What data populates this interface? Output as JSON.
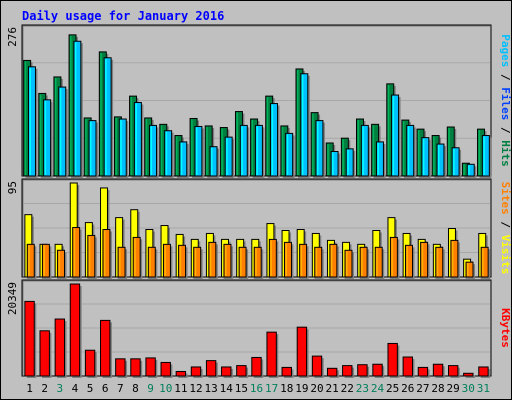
{
  "chart_data": [
    {
      "type": "bar",
      "panel": "top",
      "title": "Daily usage for January 2016",
      "y_max_label": "276",
      "ylim": [
        0,
        276
      ],
      "categories": [
        "1",
        "2",
        "3",
        "4",
        "5",
        "6",
        "7",
        "8",
        "9",
        "10",
        "11",
        "12",
        "13",
        "14",
        "15",
        "16",
        "17",
        "18",
        "19",
        "20",
        "21",
        "22",
        "23",
        "24",
        "25",
        "26",
        "27",
        "28",
        "29",
        "30",
        "31"
      ],
      "series": [
        {
          "name": "Hits",
          "color": "#008040",
          "values": [
            217,
            155,
            186,
            265,
            109,
            233,
            111,
            150,
            109,
            97,
            76,
            108,
            94,
            91,
            121,
            107,
            150,
            94,
            201,
            119,
            62,
            71,
            107,
            97,
            173,
            105,
            88,
            76,
            92,
            24,
            88
          ]
        },
        {
          "name": "Files",
          "color": "#0040ff",
          "values": [
            0,
            0,
            0,
            0,
            0,
            0,
            0,
            0,
            0,
            0,
            0,
            0,
            0,
            0,
            0,
            0,
            0,
            0,
            0,
            0,
            0,
            0,
            0,
            0,
            0,
            0,
            0,
            0,
            0,
            0,
            0
          ]
        },
        {
          "name": "Pages",
          "color": "#00c0ff",
          "values": [
            205,
            143,
            167,
            253,
            104,
            222,
            107,
            138,
            95,
            85,
            64,
            93,
            55,
            73,
            95,
            95,
            136,
            80,
            192,
            104,
            46,
            51,
            95,
            64,
            152,
            95,
            72,
            60,
            53,
            22,
            76
          ]
        }
      ],
      "legend_labels": [
        "Pages",
        "Files",
        "Hits"
      ],
      "legend_separator": " / ",
      "legend_placement": "right"
    },
    {
      "type": "bar",
      "panel": "middle",
      "y_max_label": "95",
      "ylim": [
        0,
        95
      ],
      "series": [
        {
          "name": "Visits",
          "color": "#ffff00",
          "values": [
            63,
            33,
            33,
            95,
            55,
            90,
            60,
            68,
            48,
            52,
            43,
            38,
            44,
            38,
            38,
            38,
            54,
            47,
            48,
            44,
            37,
            35,
            33,
            47,
            60,
            44,
            38,
            33,
            49,
            18,
            44
          ]
        },
        {
          "name": "Sites",
          "color": "#ff8000",
          "values": [
            33,
            33,
            27,
            50,
            42,
            48,
            30,
            40,
            30,
            33,
            32,
            30,
            35,
            33,
            30,
            30,
            38,
            35,
            33,
            30,
            33,
            27,
            30,
            30,
            40,
            32,
            35,
            30,
            37,
            15,
            30
          ]
        }
      ],
      "legend_labels": [
        "Sites",
        "Visits"
      ],
      "legend_separator": " / ",
      "legend_placement": "right"
    },
    {
      "type": "bar",
      "panel": "bottom",
      "y_max_label": "20349",
      "ylim": [
        0,
        20349
      ],
      "series": [
        {
          "name": "KBytes",
          "color": "#ff0000",
          "values": [
            16500,
            10000,
            12600,
            20349,
            5700,
            12300,
            3800,
            3800,
            4000,
            3000,
            1000,
            2000,
            3400,
            2000,
            2300,
            4100,
            9700,
            1900,
            10800,
            4400,
            1700,
            2300,
            2500,
            2600,
            7200,
            4200,
            1900,
            2600,
            2300,
            600,
            2000
          ]
        }
      ],
      "legend_labels": [
        "KBytes"
      ],
      "legend_placement": "right"
    }
  ],
  "x_label_colors": {
    "weekday": "#000000",
    "weekend": "#00805c"
  },
  "weekend_days": [
    3,
    9,
    10,
    16,
    17,
    23,
    24,
    30,
    31
  ]
}
